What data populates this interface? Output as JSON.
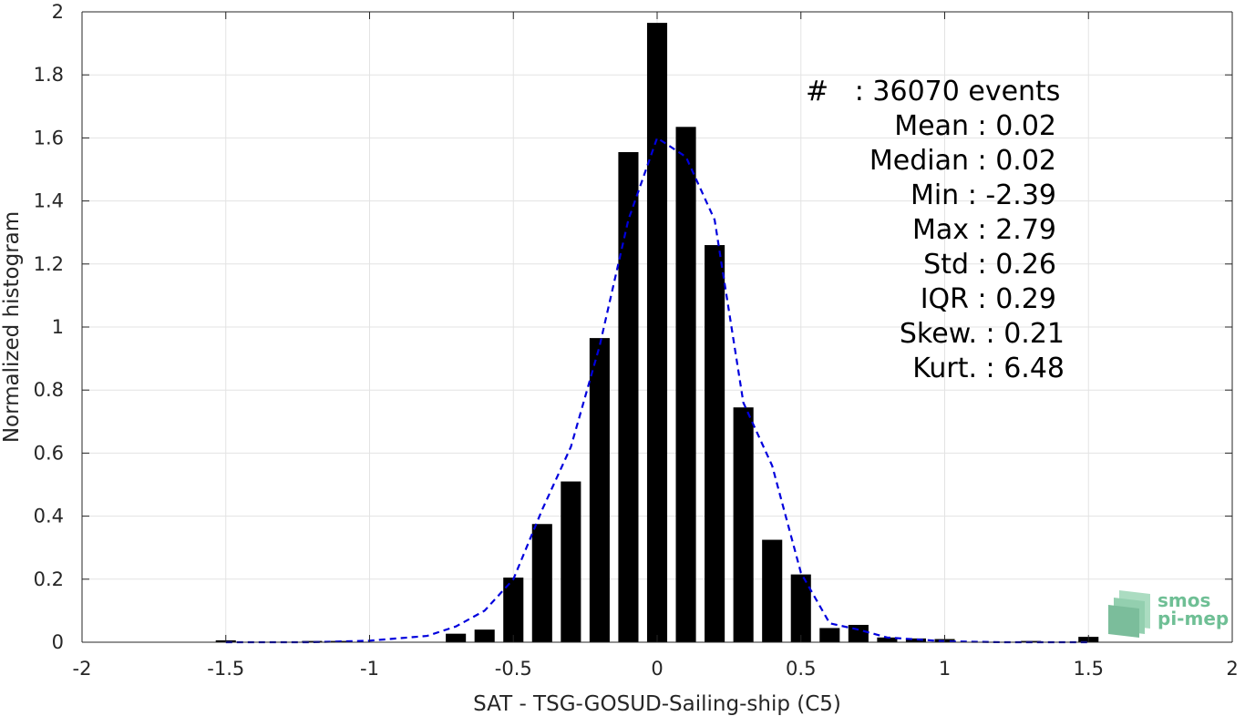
{
  "chart_data": {
    "type": "bar",
    "xlabel": "SAT - TSG-GOSUD-Sailing-ship (C5)",
    "ylabel": "Normalized histogram",
    "xlim": [
      -2,
      2
    ],
    "ylim": [
      0,
      2
    ],
    "xticks": [
      -2,
      -1.5,
      -1,
      -0.5,
      0,
      0.5,
      1,
      1.5,
      2
    ],
    "xtick_labels": [
      "-2",
      "-1.5",
      "-1",
      "-0.5",
      "0",
      "0.5",
      "1",
      "1.5",
      "2"
    ],
    "yticks": [
      0,
      0.2,
      0.4,
      0.6,
      0.8,
      1,
      1.2,
      1.4,
      1.6,
      1.8,
      2
    ],
    "ytick_labels": [
      "0",
      "0.2",
      "0.4",
      "0.6",
      "0.8",
      "1",
      "1.2",
      "1.4",
      "1.6",
      "1.8",
      "2"
    ],
    "grid": true,
    "bar_color": "#000000",
    "bar_width": 0.07,
    "bars": {
      "x": [
        -1.5,
        -1.2,
        -1.1,
        -0.7,
        -0.6,
        -0.5,
        -0.4,
        -0.3,
        -0.2,
        -0.1,
        0,
        0.1,
        0.2,
        0.3,
        0.4,
        0.5,
        0.6,
        0.7,
        0.8,
        0.9,
        1.0,
        1.3,
        1.5
      ],
      "values": [
        0.006,
        0.004,
        0.004,
        0.027,
        0.04,
        0.205,
        0.375,
        0.51,
        0.965,
        1.555,
        1.965,
        1.635,
        1.26,
        0.745,
        0.325,
        0.215,
        0.045,
        0.055,
        0.015,
        0.012,
        0.01,
        0.004,
        0.017
      ]
    },
    "fit": {
      "style": "dashed",
      "color": "#0000dd",
      "x": [
        -1.5,
        -1.2,
        -1.0,
        -0.8,
        -0.7,
        -0.6,
        -0.5,
        -0.4,
        -0.3,
        -0.2,
        -0.1,
        0,
        0.1,
        0.2,
        0.3,
        0.4,
        0.5,
        0.6,
        0.7,
        0.8,
        1.0,
        1.2,
        1.5
      ],
      "y": [
        0.0,
        0.0,
        0.005,
        0.02,
        0.05,
        0.1,
        0.2,
        0.42,
        0.62,
        0.94,
        1.34,
        1.6,
        1.54,
        1.34,
        0.76,
        0.56,
        0.22,
        0.06,
        0.04,
        0.015,
        0.003,
        0.0,
        0.0
      ]
    },
    "annotation_lines": [
      "#   : 36070 events",
      "Mean : 0.02",
      "Median : 0.02",
      "Min : -2.39",
      "Max : 2.79",
      "Std : 0.26",
      "IQR : 0.29",
      "Skew. : 0.21",
      "Kurt. : 6.48"
    ]
  },
  "logo": {
    "line1": "smos",
    "line2": "pi-mep",
    "color": "#6fbf95"
  }
}
